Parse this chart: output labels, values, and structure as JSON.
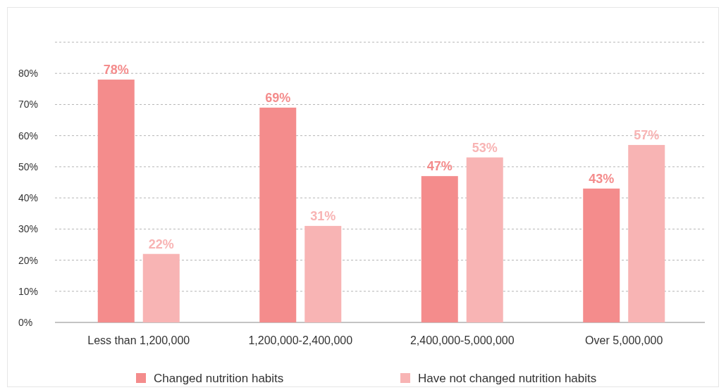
{
  "chart_data": {
    "type": "bar",
    "categories": [
      "Less than 1,200,000",
      "1,200,000-2,400,000",
      "2,400,000-5,000,000",
      "Over 5,000,000"
    ],
    "series": [
      {
        "name": "Changed nutrition habits",
        "color": "#f48c8c",
        "values": [
          78,
          69,
          47,
          43
        ]
      },
      {
        "name": "Have not changed nutrition habits",
        "color": "#f8b4b4",
        "values": [
          22,
          31,
          53,
          57
        ]
      }
    ],
    "ylim": [
      0,
      90
    ],
    "yticks": [
      {
        "value": 0,
        "label": "0%"
      },
      {
        "value": 10,
        "label": "10%"
      },
      {
        "value": 20,
        "label": "20%"
      },
      {
        "value": 30,
        "label": "30%"
      },
      {
        "value": 40,
        "label": "40%"
      },
      {
        "value": 50,
        "label": "50%"
      },
      {
        "value": 60,
        "label": "60%"
      },
      {
        "value": 70,
        "label": "70%"
      },
      {
        "value": 80,
        "label": "80%"
      },
      {
        "value": 90,
        "label": null
      }
    ],
    "value_labels": [
      [
        "78%",
        "69%",
        "47%",
        "43%"
      ],
      [
        "22%",
        "31%",
        "53%",
        "57%"
      ]
    ],
    "grid": "y",
    "legend": "bottom"
  }
}
